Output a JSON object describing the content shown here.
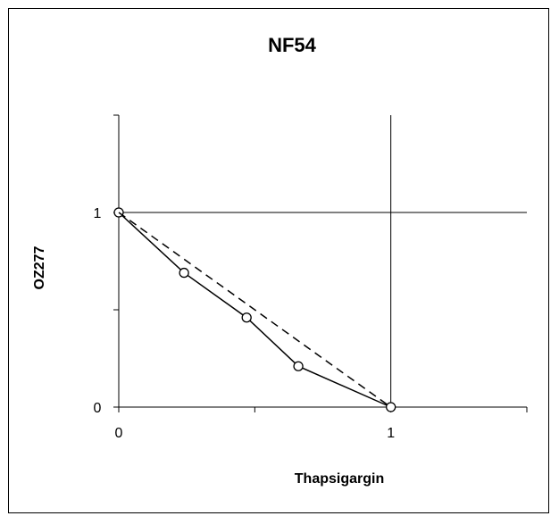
{
  "chart_data": {
    "type": "line",
    "title": "NF54",
    "xlabel": "Thapsigargin",
    "ylabel": "OZ277",
    "xlim": [
      0,
      1.5
    ],
    "ylim": [
      0,
      1.5
    ],
    "x_ticks": [
      "0",
      "1"
    ],
    "y_ticks": [
      "0",
      "1"
    ],
    "grid": true,
    "legend": "none",
    "series": [
      {
        "style": "solid-with-open-circles",
        "color": "#000000",
        "x": [
          0,
          0.24,
          0.47,
          0.66,
          1.0
        ],
        "y": [
          1.0,
          0.69,
          0.46,
          0.21,
          0.0
        ]
      },
      {
        "style": "dashed",
        "color": "#000000",
        "x": [
          0,
          1
        ],
        "y": [
          1,
          0
        ]
      }
    ]
  }
}
